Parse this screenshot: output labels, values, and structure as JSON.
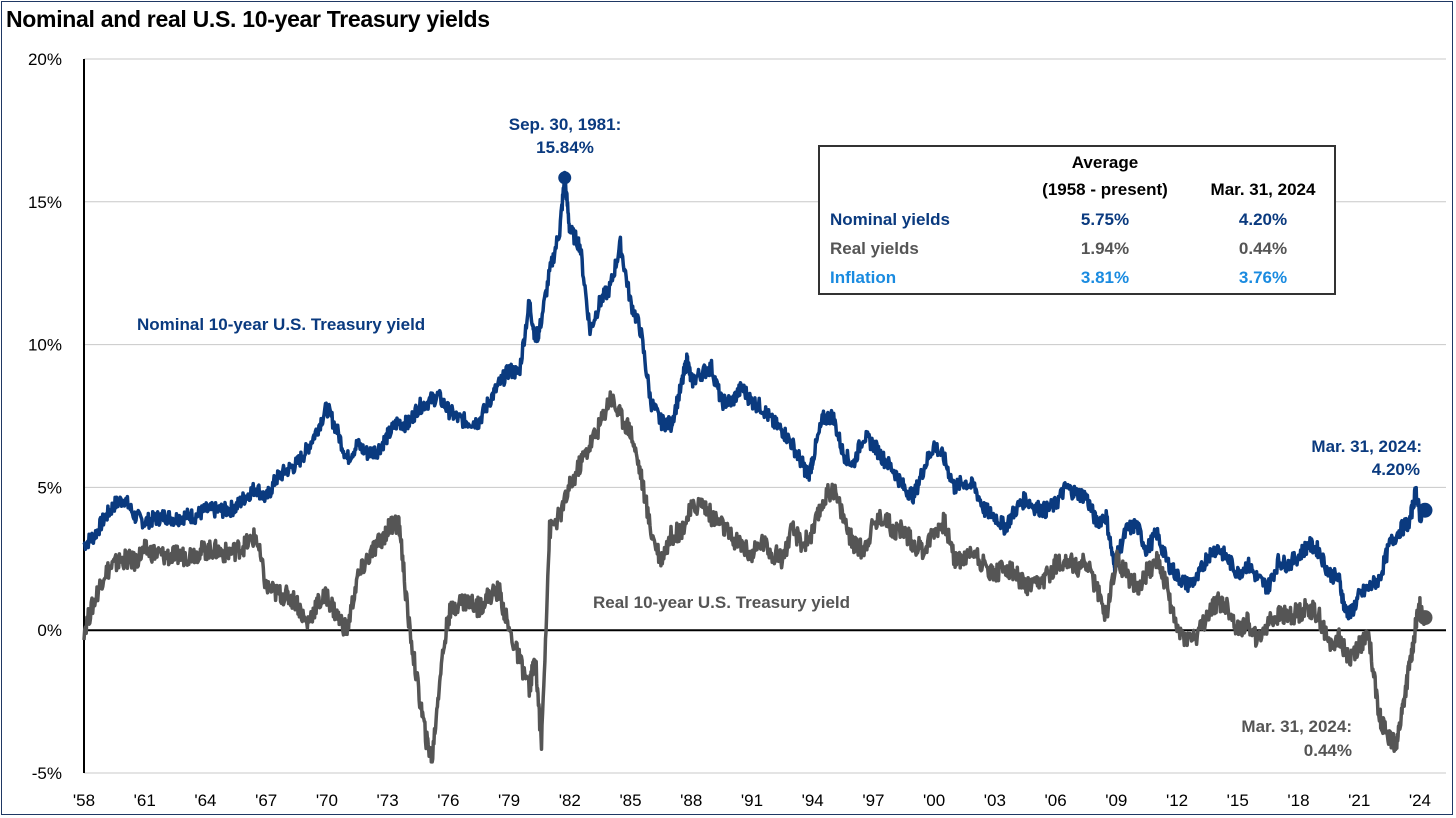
{
  "title": "Nominal and real U.S. 10-year Treasury yields",
  "colors": {
    "nominal": "#0a3a7f",
    "real": "#555555",
    "inflation": "#1a8be0",
    "grid": "#c8c8c8"
  },
  "chart_data": {
    "type": "line",
    "title": "Nominal and real U.S. 10-year Treasury yields",
    "xlabel": "",
    "ylabel": "",
    "xlim": [
      1958,
      2024.3
    ],
    "ylim": [
      -5,
      20
    ],
    "grid": true,
    "y_ticks": [
      "-5%",
      "0%",
      "5%",
      "10%",
      "15%",
      "20%"
    ],
    "y_tick_values": [
      -5,
      0,
      5,
      10,
      15,
      20
    ],
    "x_ticks": [
      "'58",
      "'61",
      "'64",
      "'67",
      "'70",
      "'73",
      "'76",
      "'79",
      "'82",
      "'85",
      "'88",
      "'91",
      "'94",
      "'97",
      "'00",
      "'03",
      "'06",
      "'09",
      "'12",
      "'15",
      "'18",
      "'21",
      "'24"
    ],
    "x_tick_values": [
      1958,
      1961,
      1964,
      1967,
      1970,
      1973,
      1976,
      1979,
      1982,
      1985,
      1988,
      1991,
      1994,
      1997,
      2000,
      2003,
      2006,
      2009,
      2012,
      2015,
      2018,
      2021,
      2024
    ],
    "series": [
      {
        "name": "Nominal 10-year U.S. Treasury yield",
        "x": [
          1958.0,
          1958.5,
          1959.0,
          1959.5,
          1960.0,
          1960.5,
          1961.0,
          1961.5,
          1962.0,
          1962.5,
          1963.0,
          1963.5,
          1964.0,
          1964.5,
          1965.0,
          1965.5,
          1966.0,
          1966.5,
          1967.0,
          1967.5,
          1968.0,
          1968.5,
          1969.0,
          1969.5,
          1970.0,
          1970.5,
          1971.0,
          1971.5,
          1972.0,
          1972.5,
          1973.0,
          1973.5,
          1974.0,
          1974.5,
          1975.0,
          1975.5,
          1976.0,
          1976.5,
          1977.0,
          1977.5,
          1978.0,
          1978.5,
          1979.0,
          1979.5,
          1980.0,
          1980.3,
          1980.5,
          1981.0,
          1981.5,
          1981.75,
          1982.0,
          1982.5,
          1983.0,
          1983.5,
          1984.0,
          1984.5,
          1985.0,
          1985.5,
          1986.0,
          1986.5,
          1987.0,
          1987.5,
          1987.8,
          1988.0,
          1988.5,
          1989.0,
          1989.5,
          1990.0,
          1990.5,
          1991.0,
          1991.5,
          1992.0,
          1992.5,
          1993.0,
          1993.5,
          1993.8,
          1994.0,
          1994.5,
          1995.0,
          1995.5,
          1996.0,
          1996.5,
          1997.0,
          1997.5,
          1998.0,
          1998.5,
          1999.0,
          1999.5,
          2000.0,
          2000.5,
          2001.0,
          2001.5,
          2002.0,
          2002.5,
          2003.0,
          2003.5,
          2004.0,
          2004.5,
          2005.0,
          2005.5,
          2006.0,
          2006.5,
          2007.0,
          2007.5,
          2008.0,
          2008.5,
          2008.9,
          2009.0,
          2009.5,
          2010.0,
          2010.5,
          2011.0,
          2011.5,
          2012.0,
          2012.5,
          2013.0,
          2013.5,
          2014.0,
          2014.5,
          2015.0,
          2015.5,
          2016.0,
          2016.5,
          2017.0,
          2017.5,
          2018.0,
          2018.5,
          2019.0,
          2019.5,
          2020.0,
          2020.3,
          2020.6,
          2021.0,
          2021.5,
          2022.0,
          2022.5,
          2023.0,
          2023.5,
          2023.8,
          2024.0,
          2024.25
        ],
        "values": [
          3.0,
          3.3,
          3.9,
          4.4,
          4.6,
          4.0,
          3.8,
          3.9,
          4.0,
          3.9,
          4.0,
          4.0,
          4.2,
          4.2,
          4.2,
          4.3,
          4.7,
          5.0,
          4.6,
          5.3,
          5.6,
          5.8,
          6.3,
          7.0,
          7.8,
          7.0,
          6.0,
          6.5,
          6.2,
          6.3,
          6.8,
          7.3,
          7.2,
          7.8,
          8.0,
          8.2,
          7.7,
          7.4,
          7.3,
          7.3,
          8.0,
          8.6,
          9.1,
          9.0,
          11.5,
          10.2,
          10.5,
          12.5,
          14.0,
          15.84,
          14.0,
          13.5,
          10.5,
          11.5,
          12.0,
          13.5,
          11.5,
          10.5,
          8.0,
          7.3,
          7.2,
          8.5,
          9.5,
          8.7,
          9.0,
          9.2,
          8.0,
          8.0,
          8.5,
          8.0,
          7.8,
          7.3,
          7.0,
          6.5,
          5.8,
          5.4,
          6.0,
          7.4,
          7.5,
          6.2,
          5.8,
          6.8,
          6.5,
          6.0,
          5.6,
          5.0,
          4.7,
          5.7,
          6.5,
          6.0,
          5.0,
          5.2,
          5.0,
          4.2,
          4.0,
          3.6,
          4.2,
          4.6,
          4.3,
          4.2,
          4.4,
          5.0,
          4.8,
          4.7,
          3.8,
          4.0,
          2.2,
          2.5,
          3.5,
          3.7,
          2.8,
          3.4,
          2.4,
          1.9,
          1.6,
          1.8,
          2.6,
          2.9,
          2.5,
          2.0,
          2.3,
          1.8,
          1.5,
          2.4,
          2.3,
          2.6,
          3.0,
          2.8,
          2.0,
          1.8,
          0.7,
          0.6,
          1.2,
          1.5,
          1.8,
          3.0,
          3.5,
          3.8,
          4.9,
          4.0,
          4.2
        ]
      },
      {
        "name": "Real 10-year U.S. Treasury yield",
        "x": [
          1958.0,
          1958.5,
          1959.0,
          1959.5,
          1960.0,
          1960.5,
          1961.0,
          1961.5,
          1962.0,
          1962.5,
          1963.0,
          1963.5,
          1964.0,
          1964.5,
          1965.0,
          1965.5,
          1966.0,
          1966.5,
          1967.0,
          1967.5,
          1968.0,
          1968.5,
          1969.0,
          1969.5,
          1970.0,
          1970.5,
          1971.0,
          1971.5,
          1972.0,
          1972.5,
          1973.0,
          1973.3,
          1973.6,
          1974.0,
          1974.5,
          1974.9,
          1975.2,
          1975.6,
          1976.0,
          1976.5,
          1977.0,
          1977.5,
          1978.0,
          1978.5,
          1979.0,
          1979.5,
          1980.0,
          1980.3,
          1980.6,
          1981.0,
          1981.5,
          1982.0,
          1982.5,
          1983.0,
          1983.5,
          1984.0,
          1984.5,
          1985.0,
          1985.5,
          1986.0,
          1986.5,
          1987.0,
          1987.5,
          1988.0,
          1988.5,
          1989.0,
          1989.5,
          1990.0,
          1990.5,
          1991.0,
          1991.5,
          1992.0,
          1992.5,
          1993.0,
          1993.5,
          1994.0,
          1994.5,
          1995.0,
          1995.5,
          1996.0,
          1996.5,
          1997.0,
          1997.5,
          1998.0,
          1998.5,
          1999.0,
          1999.5,
          2000.0,
          2000.5,
          2001.0,
          2001.5,
          2002.0,
          2002.5,
          2003.0,
          2003.5,
          2004.0,
          2004.5,
          2005.0,
          2005.5,
          2006.0,
          2006.5,
          2007.0,
          2007.5,
          2008.0,
          2008.5,
          2009.0,
          2009.5,
          2010.0,
          2010.5,
          2011.0,
          2011.5,
          2012.0,
          2012.5,
          2013.0,
          2013.5,
          2014.0,
          2014.5,
          2015.0,
          2015.5,
          2016.0,
          2016.5,
          2017.0,
          2017.5,
          2018.0,
          2018.5,
          2019.0,
          2019.5,
          2020.0,
          2020.5,
          2021.0,
          2021.5,
          2022.0,
          2022.3,
          2022.6,
          2022.9,
          2023.2,
          2023.5,
          2023.8,
          2024.0,
          2024.25
        ],
        "values": [
          0.0,
          1.0,
          2.0,
          2.3,
          2.5,
          2.4,
          2.8,
          2.7,
          2.6,
          2.6,
          2.6,
          2.7,
          2.8,
          2.8,
          2.7,
          2.8,
          3.0,
          3.3,
          1.5,
          1.3,
          1.2,
          1.0,
          0.2,
          0.9,
          1.2,
          0.5,
          0.0,
          1.8,
          2.5,
          3.0,
          3.5,
          3.8,
          3.6,
          0.5,
          -2.0,
          -3.8,
          -4.5,
          -1.5,
          0.5,
          1.0,
          1.0,
          0.8,
          1.2,
          1.4,
          0.0,
          -1.0,
          -2.0,
          -1.0,
          -4.0,
          3.5,
          4.0,
          5.0,
          5.8,
          6.5,
          7.2,
          8.2,
          7.5,
          7.0,
          5.5,
          3.5,
          2.5,
          3.3,
          3.5,
          4.2,
          4.5,
          4.0,
          3.7,
          3.2,
          3.0,
          2.6,
          3.1,
          2.7,
          2.5,
          3.5,
          3.0,
          3.4,
          4.5,
          5.0,
          4.0,
          3.0,
          2.8,
          3.7,
          4.0,
          3.5,
          3.5,
          3.0,
          2.8,
          3.5,
          3.8,
          2.5,
          2.5,
          2.8,
          2.2,
          2.0,
          2.2,
          2.0,
          1.5,
          1.5,
          1.8,
          2.3,
          2.5,
          2.2,
          2.4,
          1.5,
          0.5,
          2.5,
          2.0,
          1.5,
          2.0,
          2.5,
          1.5,
          0.0,
          -0.3,
          -0.2,
          0.5,
          1.0,
          0.8,
          0.0,
          0.3,
          -0.4,
          0.3,
          0.5,
          0.5,
          0.6,
          0.8,
          0.5,
          -0.5,
          -0.2,
          -1.0,
          -0.5,
          -0.3,
          -3.0,
          -3.5,
          -4.0,
          -3.8,
          -2.5,
          -1.2,
          0.2,
          0.8,
          0.44
        ]
      }
    ],
    "annotations": [
      {
        "label": "Nominal  10-year U.S.  Treasury yield"
      },
      {
        "label": "Real 10-year U.S. Treasury yield"
      },
      {
        "label": "Sep. 30, 1981:",
        "value": "15.84%"
      },
      {
        "label": "Mar. 31, 2024:",
        "value": "4.20%"
      },
      {
        "label": "Mar. 31, 2024:",
        "value": "0.44%"
      }
    ],
    "table": {
      "header_col2_line1": "Average",
      "header_col2_line2": "(1958 - present)",
      "header_col3": "Mar. 31, 2024",
      "rows": [
        {
          "label": "Nominal yields",
          "average": "5.75%",
          "current": "4.20%"
        },
        {
          "label": "Real yields",
          "average": "1.94%",
          "current": "0.44%"
        },
        {
          "label": "Inflation",
          "average": "3.81%",
          "current": "3.76%"
        }
      ]
    }
  }
}
